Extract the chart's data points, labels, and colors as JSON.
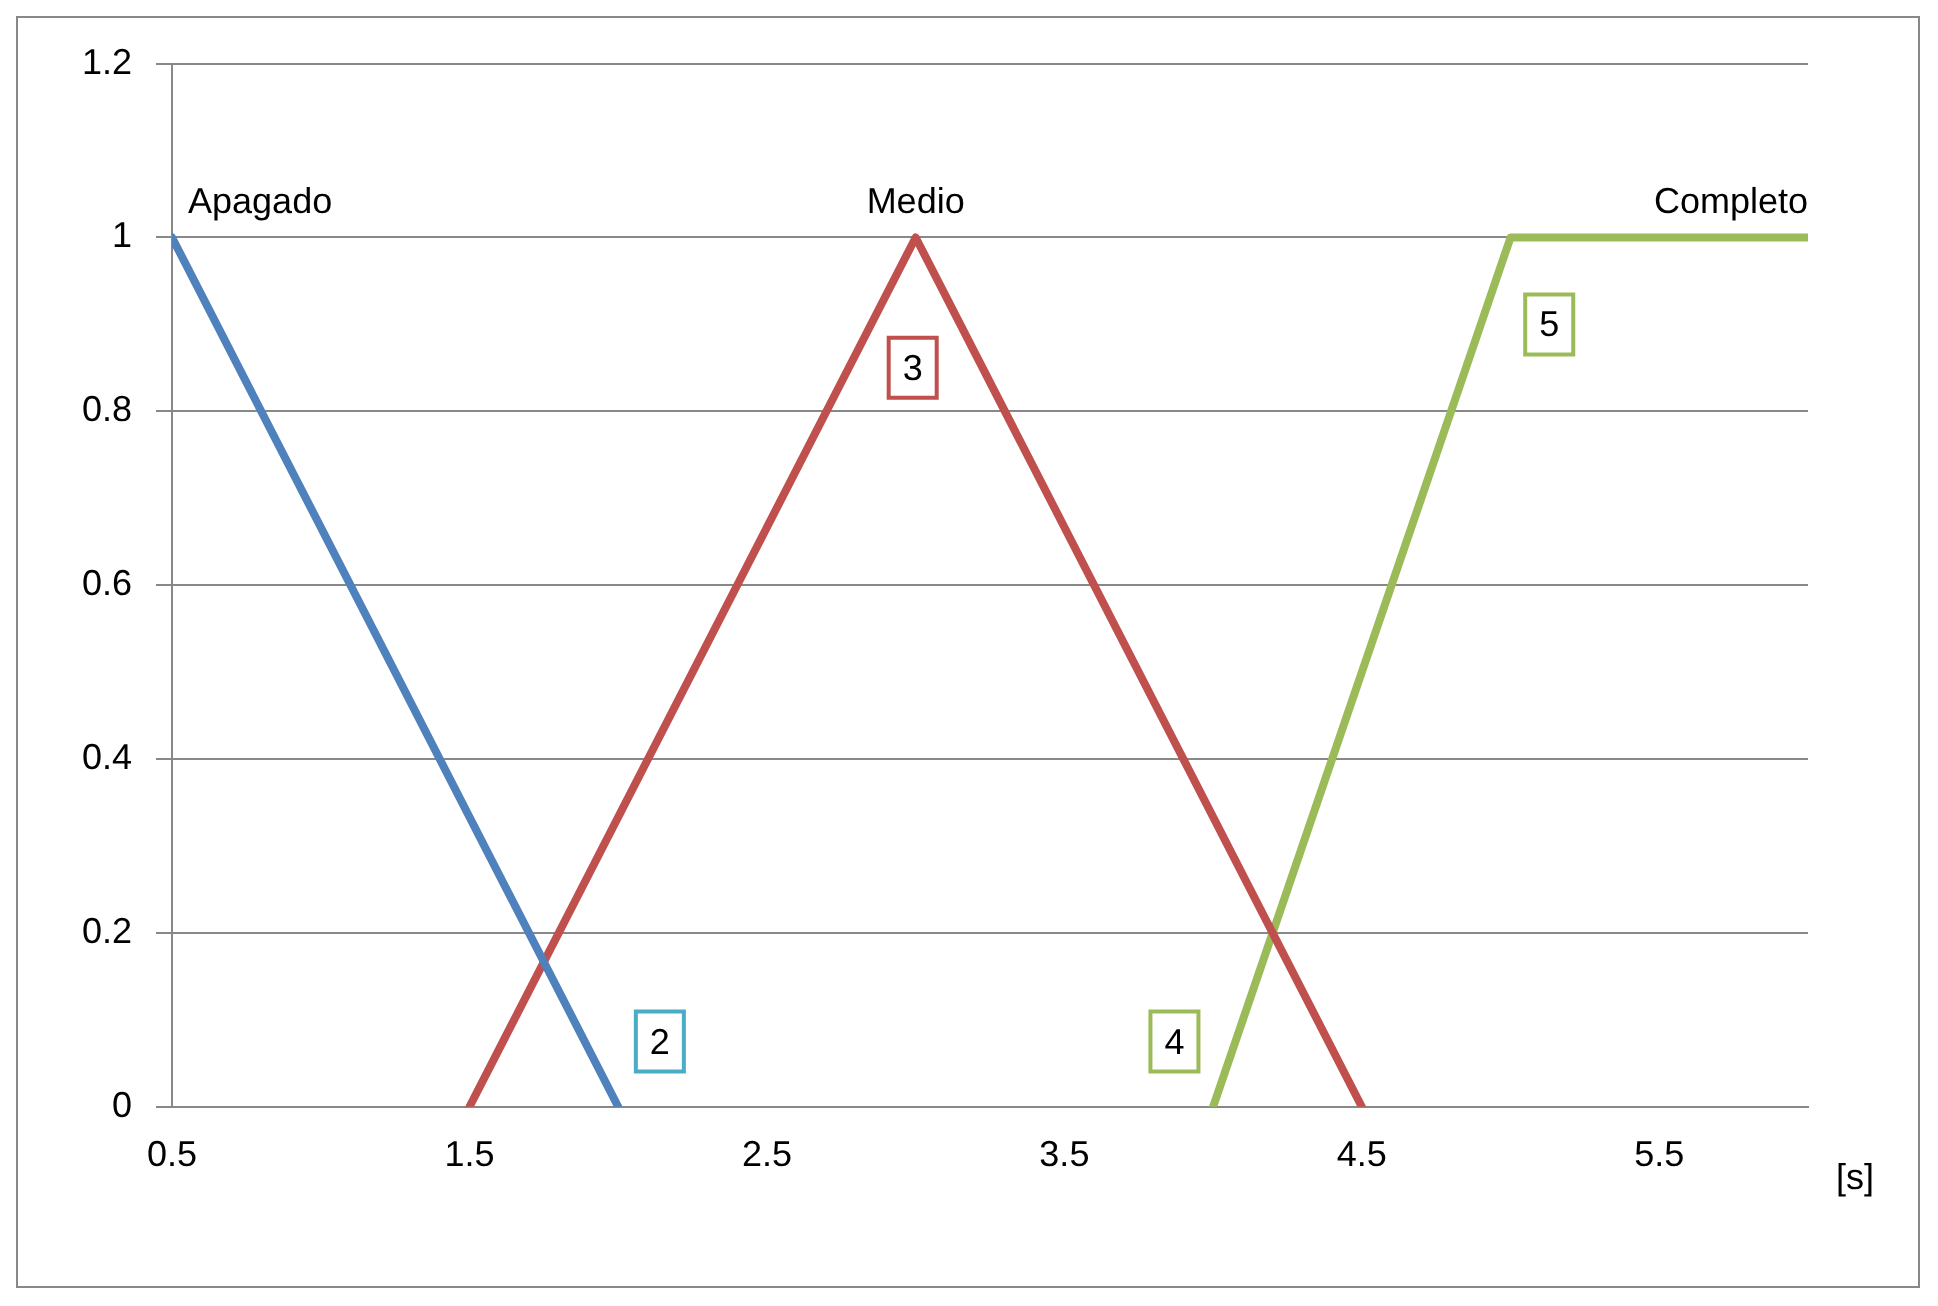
{
  "chart_data": {
    "type": "line",
    "xlabel": "[s]",
    "xlim": [
      0.5,
      6
    ],
    "xticks": [
      0.5,
      1.5,
      2.5,
      3.5,
      4.5,
      5.5
    ],
    "ylim": [
      0,
      1.2
    ],
    "yticks": [
      0,
      0.2,
      0.4,
      0.6,
      0.8,
      1,
      1.2
    ],
    "grid": "y",
    "legend": false,
    "marker": "none",
    "line_style": "solid",
    "series": [
      {
        "name": "Apagado",
        "color": "#4f81bd",
        "x": [
          0.5,
          2
        ],
        "values": [
          1,
          0
        ]
      },
      {
        "name": "Medio",
        "color": "#c0504d",
        "x": [
          1.5,
          3,
          4.5
        ],
        "values": [
          0,
          1,
          0
        ]
      },
      {
        "name": "Completo",
        "color": "#9bbb59",
        "x": [
          4,
          5,
          6
        ],
        "values": [
          0,
          1,
          1
        ]
      }
    ],
    "annotations": [
      {
        "text": "2",
        "x": 2.14,
        "y": 0.075
      },
      {
        "text": "3",
        "x": 2.99,
        "y": 0.85
      },
      {
        "text": "4",
        "x": 3.87,
        "y": 0.075
      },
      {
        "text": "5",
        "x": 5.13,
        "y": 0.9
      }
    ]
  }
}
